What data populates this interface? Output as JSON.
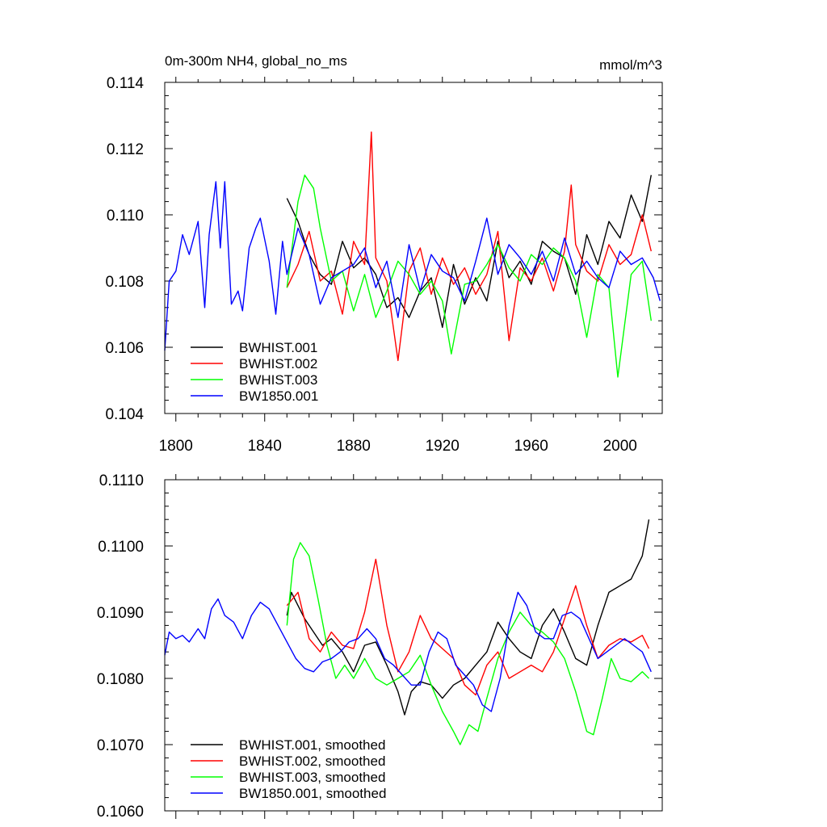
{
  "chart_data": [
    {
      "type": "line",
      "title": "0m-300m NH4, global_no_ms",
      "units": "mmol/m^3",
      "xlim": [
        1795,
        2019
      ],
      "ylim": [
        0.104,
        0.114
      ],
      "xticks": [
        1800,
        1840,
        1880,
        1920,
        1960,
        2000
      ],
      "xtick_labels": [
        "1800",
        "1840",
        "1880",
        "1920",
        "1960",
        "2000"
      ],
      "yticks": [
        0.104,
        0.106,
        0.108,
        0.11,
        0.112,
        0.114
      ],
      "ytick_labels": [
        "0.104",
        "0.106",
        "0.108",
        "0.110",
        "0.112",
        "0.114"
      ],
      "legend": "bottom-left",
      "series": [
        {
          "name": "BWHIST.001",
          "color": "#000000",
          "x": [
            1850,
            1855,
            1860,
            1865,
            1870,
            1875,
            1880,
            1885,
            1890,
            1895,
            1900,
            1905,
            1910,
            1915,
            1920,
            1925,
            1930,
            1935,
            1940,
            1945,
            1950,
            1955,
            1960,
            1965,
            1970,
            1975,
            1980,
            1985,
            1990,
            1995,
            2000,
            2005,
            2010,
            2014
          ],
          "y": [
            0.1105,
            0.1098,
            0.1088,
            0.1082,
            0.1079,
            0.1092,
            0.1084,
            0.1087,
            0.1082,
            0.1072,
            0.1075,
            0.1069,
            0.1077,
            0.1081,
            0.1066,
            0.1085,
            0.1073,
            0.1081,
            0.1074,
            0.1092,
            0.1081,
            0.1086,
            0.1079,
            0.1092,
            0.1089,
            0.1087,
            0.1076,
            0.1094,
            0.1085,
            0.1098,
            0.1093,
            0.1106,
            0.1098,
            0.1112
          ]
        },
        {
          "name": "BWHIST.002",
          "color": "#ff0000",
          "x": [
            1850,
            1855,
            1860,
            1865,
            1870,
            1875,
            1880,
            1885,
            1888,
            1890,
            1895,
            1900,
            1905,
            1910,
            1915,
            1920,
            1925,
            1930,
            1935,
            1940,
            1945,
            1950,
            1955,
            1960,
            1965,
            1970,
            1975,
            1978,
            1980,
            1985,
            1990,
            1995,
            2000,
            2005,
            2010,
            2014
          ],
          "y": [
            0.1078,
            0.1085,
            0.1095,
            0.108,
            0.1083,
            0.107,
            0.1092,
            0.1085,
            0.1125,
            0.1087,
            0.108,
            0.1056,
            0.1083,
            0.109,
            0.1076,
            0.1087,
            0.1079,
            0.1084,
            0.1076,
            0.1082,
            0.1095,
            0.1062,
            0.1084,
            0.108,
            0.1087,
            0.1077,
            0.1089,
            0.1109,
            0.1091,
            0.1083,
            0.108,
            0.1091,
            0.1085,
            0.1088,
            0.11,
            0.1089
          ]
        },
        {
          "name": "BWHIST.003",
          "color": "#00ff00",
          "x": [
            1850,
            1855,
            1858,
            1862,
            1865,
            1870,
            1875,
            1880,
            1885,
            1890,
            1895,
            1900,
            1905,
            1910,
            1915,
            1920,
            1924,
            1930,
            1935,
            1940,
            1945,
            1950,
            1955,
            1960,
            1965,
            1970,
            1975,
            1980,
            1985,
            1990,
            1995,
            1999,
            2005,
            2010,
            2014
          ],
          "y": [
            0.1078,
            0.1104,
            0.1112,
            0.1108,
            0.1096,
            0.108,
            0.1083,
            0.1071,
            0.1082,
            0.1069,
            0.1077,
            0.1086,
            0.1082,
            0.1076,
            0.108,
            0.1074,
            0.1058,
            0.1079,
            0.108,
            0.1085,
            0.1091,
            0.1084,
            0.108,
            0.1088,
            0.1085,
            0.109,
            0.1087,
            0.108,
            0.1063,
            0.1082,
            0.1078,
            0.1051,
            0.1082,
            0.1086,
            0.1068
          ]
        },
        {
          "name": "BW1850.001",
          "color": "#0000ff",
          "x": [
            1795,
            1797,
            1800,
            1803,
            1806,
            1810,
            1813,
            1815,
            1818,
            1820,
            1822,
            1825,
            1828,
            1830,
            1833,
            1836,
            1838,
            1842,
            1845,
            1848,
            1850,
            1855,
            1860,
            1865,
            1870,
            1875,
            1880,
            1885,
            1890,
            1895,
            1900,
            1905,
            1910,
            1915,
            1920,
            1925,
            1930,
            1935,
            1940,
            1945,
            1950,
            1955,
            1960,
            1965,
            1970,
            1975,
            1980,
            1985,
            1990,
            1995,
            2000,
            2005,
            2010,
            2015,
            2018
          ],
          "y": [
            0.1059,
            0.108,
            0.1083,
            0.1094,
            0.1088,
            0.1098,
            0.1072,
            0.1094,
            0.111,
            0.109,
            0.111,
            0.1073,
            0.1077,
            0.1071,
            0.109,
            0.1096,
            0.1099,
            0.1086,
            0.107,
            0.1092,
            0.1082,
            0.1096,
            0.1088,
            0.1073,
            0.1081,
            0.1083,
            0.1085,
            0.109,
            0.1078,
            0.1086,
            0.1069,
            0.1091,
            0.1077,
            0.1088,
            0.1083,
            0.1081,
            0.1074,
            0.1086,
            0.1099,
            0.1082,
            0.1091,
            0.1087,
            0.1082,
            0.1089,
            0.108,
            0.1093,
            0.1082,
            0.1086,
            0.1081,
            0.1078,
            0.1089,
            0.1085,
            0.1087,
            0.1081,
            0.1074
          ]
        }
      ]
    },
    {
      "type": "line",
      "title": "",
      "xlim": [
        1795,
        2019
      ],
      "ylim": [
        0.106,
        0.111
      ],
      "xticks": [
        1800,
        1840,
        1880,
        1920,
        1960,
        2000
      ],
      "yticks": [
        0.106,
        0.107,
        0.108,
        0.109,
        0.11,
        0.111
      ],
      "ytick_labels": [
        "0.1060",
        "0.1070",
        "0.1080",
        "0.1090",
        "0.1100",
        "0.1110"
      ],
      "legend": "bottom-left",
      "series": [
        {
          "name": "BWHIST.001, smoothed",
          "color": "#000000",
          "x": [
            1850,
            1852,
            1855,
            1858,
            1862,
            1866,
            1870,
            1875,
            1880,
            1885,
            1890,
            1895,
            1900,
            1903,
            1906,
            1910,
            1915,
            1920,
            1925,
            1930,
            1935,
            1940,
            1945,
            1950,
            1955,
            1960,
            1965,
            1970,
            1975,
            1980,
            1985,
            1990,
            1995,
            2000,
            2005,
            2010,
            2013
          ],
          "y": [
            0.10895,
            0.1093,
            0.1091,
            0.1089,
            0.1087,
            0.1085,
            0.1086,
            0.1084,
            0.1081,
            0.1085,
            0.10855,
            0.1082,
            0.1078,
            0.10745,
            0.1078,
            0.10795,
            0.1079,
            0.1077,
            0.1079,
            0.108,
            0.1082,
            0.1084,
            0.10885,
            0.1086,
            0.1084,
            0.1083,
            0.1088,
            0.10905,
            0.1087,
            0.1083,
            0.1082,
            0.1088,
            0.1093,
            0.1094,
            0.1095,
            0.10985,
            0.1104
          ]
        },
        {
          "name": "BWHIST.002, smoothed",
          "color": "#ff0000",
          "x": [
            1850,
            1855,
            1860,
            1865,
            1870,
            1875,
            1880,
            1885,
            1890,
            1895,
            1900,
            1905,
            1910,
            1915,
            1920,
            1925,
            1930,
            1935,
            1940,
            1945,
            1950,
            1955,
            1960,
            1965,
            1970,
            1975,
            1980,
            1985,
            1990,
            1995,
            2000,
            2005,
            2010,
            2013
          ],
          "y": [
            0.1091,
            0.1093,
            0.1086,
            0.1084,
            0.1087,
            0.1085,
            0.10845,
            0.109,
            0.1098,
            0.1088,
            0.1081,
            0.1084,
            0.10895,
            0.1086,
            0.10845,
            0.1083,
            0.1079,
            0.10775,
            0.1082,
            0.1084,
            0.108,
            0.1081,
            0.1082,
            0.1081,
            0.1084,
            0.1089,
            0.1094,
            0.1088,
            0.1083,
            0.1085,
            0.1086,
            0.10855,
            0.10865,
            0.10845
          ]
        },
        {
          "name": "BWHIST.003, smoothed",
          "color": "#00ff00",
          "x": [
            1850,
            1853,
            1856,
            1860,
            1864,
            1868,
            1872,
            1876,
            1880,
            1885,
            1890,
            1895,
            1900,
            1905,
            1910,
            1915,
            1920,
            1925,
            1928,
            1932,
            1936,
            1940,
            1945,
            1950,
            1955,
            1960,
            1965,
            1970,
            1975,
            1980,
            1985,
            1988,
            1992,
            1996,
            2000,
            2005,
            2010,
            2013
          ],
          "y": [
            0.1088,
            0.1098,
            0.11005,
            0.10985,
            0.1092,
            0.1085,
            0.108,
            0.1082,
            0.108,
            0.1083,
            0.108,
            0.1079,
            0.108,
            0.1081,
            0.10835,
            0.1079,
            0.1075,
            0.1072,
            0.107,
            0.1073,
            0.1072,
            0.1077,
            0.1083,
            0.1087,
            0.109,
            0.1088,
            0.1087,
            0.10855,
            0.1083,
            0.1078,
            0.1072,
            0.10715,
            0.1077,
            0.1083,
            0.108,
            0.10795,
            0.1081,
            0.108
          ]
        },
        {
          "name": "BW1850.001, smoothed",
          "color": "#0000ff",
          "x": [
            1795,
            1797,
            1800,
            1803,
            1806,
            1810,
            1813,
            1816,
            1819,
            1822,
            1826,
            1830,
            1834,
            1838,
            1842,
            1846,
            1850,
            1854,
            1858,
            1862,
            1866,
            1870,
            1874,
            1878,
            1882,
            1886,
            1890,
            1894,
            1898,
            1902,
            1906,
            1910,
            1914,
            1918,
            1922,
            1926,
            1930,
            1934,
            1938,
            1942,
            1946,
            1950,
            1954,
            1958,
            1962,
            1966,
            1970,
            1974,
            1978,
            1982,
            1986,
            1990,
            1994,
            1998,
            2002,
            2006,
            2010,
            2014
          ],
          "y": [
            0.10835,
            0.1087,
            0.1086,
            0.10865,
            0.10855,
            0.10875,
            0.1086,
            0.10905,
            0.1092,
            0.10895,
            0.10885,
            0.1086,
            0.10895,
            0.10915,
            0.10905,
            0.1088,
            0.10855,
            0.1083,
            0.10815,
            0.1081,
            0.10825,
            0.1083,
            0.1084,
            0.10855,
            0.1086,
            0.10875,
            0.1086,
            0.1083,
            0.1082,
            0.10805,
            0.1079,
            0.1079,
            0.1084,
            0.1087,
            0.1086,
            0.1082,
            0.10805,
            0.1079,
            0.1076,
            0.1075,
            0.108,
            0.1088,
            0.1093,
            0.1091,
            0.1087,
            0.1086,
            0.1086,
            0.10895,
            0.109,
            0.1089,
            0.1086,
            0.1083,
            0.1084,
            0.1085,
            0.1086,
            0.1085,
            0.1084,
            0.1081
          ]
        }
      ]
    }
  ]
}
